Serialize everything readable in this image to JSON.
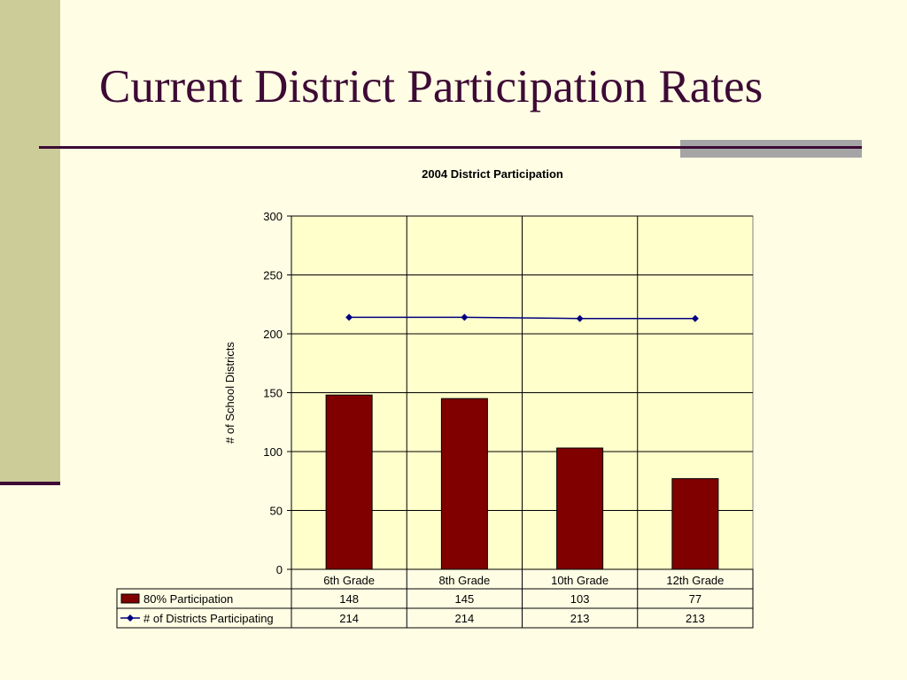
{
  "slide": {
    "title": "Current District Participation Rates"
  },
  "chart_data": {
    "type": "bar",
    "title": "2004 District Participation",
    "ylabel": "# of School Districts",
    "xlabel": "",
    "ylim": [
      0,
      300
    ],
    "yticks": [
      0,
      50,
      100,
      150,
      200,
      250,
      300
    ],
    "categories": [
      "6th Grade",
      "8th Grade",
      "10th Grade",
      "12th Grade"
    ],
    "series": [
      {
        "name": "80% Participation",
        "type": "bar",
        "values": [
          148,
          145,
          103,
          77
        ],
        "color": "#800000"
      },
      {
        "name": "# of Districts Participating",
        "type": "line",
        "values": [
          214,
          214,
          213,
          213
        ],
        "color": "#000080"
      }
    ],
    "grid": true,
    "legend": "data-table",
    "plot_background": "#ffffcc"
  }
}
